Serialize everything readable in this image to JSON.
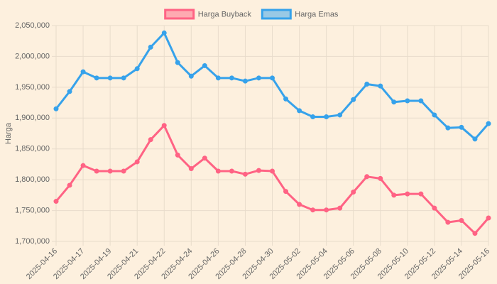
{
  "chart_data": {
    "type": "line",
    "y_label": "Harga",
    "categories": [
      "2025-04-16",
      null,
      "2025-04-17",
      null,
      "2025-04-19",
      null,
      "2025-04-21",
      null,
      "2025-04-22",
      null,
      "2025-04-24",
      null,
      "2025-04-26",
      null,
      "2025-04-28",
      null,
      "2025-04-30",
      null,
      "2025-05-02",
      null,
      "2025-05-04",
      null,
      "2025-05-06",
      null,
      "2025-05-08",
      null,
      "2025-05-10",
      null,
      "2025-05-12",
      null,
      "2025-05-14",
      null,
      "2025-05-16"
    ],
    "series": [
      {
        "name": "Harga Buyback",
        "color": "#ff6384",
        "values": [
          1765000,
          1791000,
          1823000,
          1814000,
          1814000,
          1814000,
          1829000,
          1865000,
          1888000,
          1840000,
          1818000,
          1835000,
          1814000,
          1814000,
          1809000,
          1815000,
          1814000,
          1781000,
          1760000,
          1751000,
          1751000,
          1754000,
          1780000,
          1805000,
          1802000,
          1775000,
          1777000,
          1777000,
          1754000,
          1731000,
          1734000,
          1713000,
          1738000
        ]
      },
      {
        "name": "Harga Emas",
        "color": "#36a2eb",
        "values": [
          1915000,
          1943000,
          1975000,
          1965000,
          1965000,
          1965000,
          1980000,
          2015000,
          2038000,
          1990000,
          1968000,
          1985000,
          1965000,
          1965000,
          1960000,
          1965000,
          1965000,
          1931000,
          1912000,
          1902000,
          1902000,
          1905000,
          1930000,
          1955000,
          1952000,
          1926000,
          1928000,
          1928000,
          1905000,
          1884000,
          1885000,
          1866000,
          1891000
        ]
      }
    ],
    "ylim": [
      1700000,
      2050000
    ],
    "yticks": [
      {
        "value": 1700000,
        "label": "1,700,000"
      },
      {
        "value": 1750000,
        "label": "1,750,000"
      },
      {
        "value": 1800000,
        "label": "1,800,000"
      },
      {
        "value": 1850000,
        "label": "1,850,000"
      },
      {
        "value": 1900000,
        "label": "1,900,000"
      },
      {
        "value": 1950000,
        "label": "1,950,000"
      },
      {
        "value": 2000000,
        "label": "2,000,000"
      },
      {
        "value": 2050000,
        "label": "2,050,000"
      }
    ],
    "grid": true,
    "legend": "top"
  }
}
